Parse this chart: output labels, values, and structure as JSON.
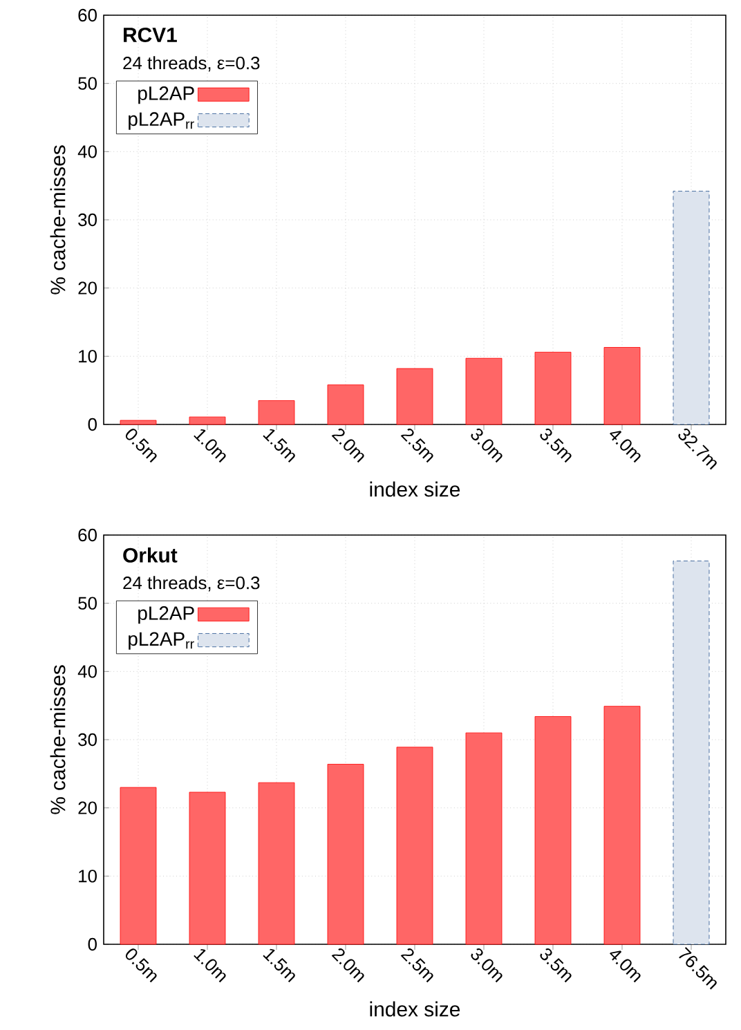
{
  "chart_data": [
    {
      "type": "bar",
      "title": "RCV1",
      "subtitle": "24 threads, ε=0.3",
      "xlabel": "index size",
      "ylabel": "% cache-misses",
      "categories": [
        "0.5m",
        "1.0m",
        "1.5m",
        "2.0m",
        "2.5m",
        "3.0m",
        "3.5m",
        "4.0m",
        "32.7m"
      ],
      "series": [
        {
          "name": "pL2AP",
          "color": "#ff6666",
          "values": [
            0.6,
            1.1,
            3.5,
            5.8,
            8.2,
            9.7,
            10.6,
            11.3,
            null
          ]
        },
        {
          "name": "pL2AP$_{rr}$",
          "color": "#1f4e8c",
          "values": [
            null,
            null,
            null,
            null,
            null,
            null,
            null,
            null,
            34.2
          ]
        }
      ],
      "ylim": [
        0,
        60
      ],
      "yticks": [
        0,
        10,
        20,
        30,
        40,
        50,
        60
      ],
      "grid": true,
      "legend": "top left"
    },
    {
      "type": "bar",
      "title": "Orkut",
      "subtitle": "24 threads, ε=0.3",
      "xlabel": "index size",
      "ylabel": "% cache-misses",
      "categories": [
        "0.5m",
        "1.0m",
        "1.5m",
        "2.0m",
        "2.5m",
        "3.0m",
        "3.5m",
        "4.0m",
        "76.5m"
      ],
      "series": [
        {
          "name": "pL2AP",
          "color": "#ff6666",
          "values": [
            23.0,
            22.3,
            23.7,
            26.4,
            28.9,
            31.0,
            33.4,
            34.9,
            null
          ]
        },
        {
          "name": "pL2AP$_{rr}$",
          "color": "#1f4e8c",
          "values": [
            null,
            null,
            null,
            null,
            null,
            null,
            null,
            null,
            56.2
          ]
        }
      ],
      "ylim": [
        0,
        60
      ],
      "yticks": [
        0,
        10,
        20,
        30,
        40,
        50,
        60
      ],
      "grid": true,
      "legend": "top left"
    }
  ]
}
